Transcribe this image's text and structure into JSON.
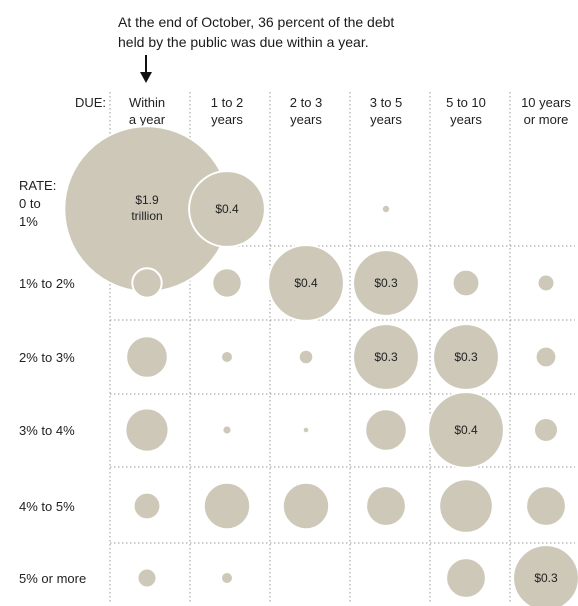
{
  "annotation": {
    "line1": "At the end of October, 36 percent of the debt",
    "line2": "held by the public was due within a year."
  },
  "chart_data": {
    "type": "bubble-matrix",
    "column_axis_label": "DUE:",
    "row_axis_label": "RATE:",
    "columns": [
      {
        "line1": "Within",
        "line2": "a year"
      },
      {
        "line1": "1 to 2",
        "line2": "years"
      },
      {
        "line1": "2 to 3",
        "line2": "years"
      },
      {
        "line1": "3 to 5",
        "line2": "years"
      },
      {
        "line1": "5 to 10",
        "line2": "years"
      },
      {
        "line1": "10 years",
        "line2": "or more"
      }
    ],
    "rows": [
      {
        "line1": "0 to",
        "line2": "1%"
      },
      {
        "line1": "1% to 2%",
        "line2": ""
      },
      {
        "line1": "2% to 3%",
        "line2": ""
      },
      {
        "line1": "3% to 4%",
        "line2": ""
      },
      {
        "line1": "4% to 5%",
        "line2": ""
      },
      {
        "line1": "5% or more",
        "line2": ""
      }
    ],
    "unit": "trillion dollars",
    "values": [
      [
        1.9,
        0.4,
        0,
        0.005,
        0,
        0
      ],
      [
        0.06,
        0.06,
        0.4,
        0.3,
        0.05,
        0.02
      ],
      [
        0.12,
        0.01,
        0.015,
        0.3,
        0.3,
        0.03
      ],
      [
        0.13,
        0.006,
        0.003,
        0.12,
        0.4,
        0.04
      ],
      [
        0.05,
        0.15,
        0.15,
        0.11,
        0.2,
        0.11
      ],
      [
        0.025,
        0.01,
        0,
        0,
        0.11,
        0.3
      ]
    ],
    "labels": [
      [
        "$1.9 trillion",
        "$0.4",
        "",
        "",
        "",
        ""
      ],
      [
        "",
        "",
        "$0.4",
        "$0.3",
        "",
        ""
      ],
      [
        "",
        "",
        "",
        "$0.3",
        "$0.3",
        ""
      ],
      [
        "",
        "",
        "",
        "",
        "$0.4",
        ""
      ],
      [
        "",
        "",
        "",
        "",
        "",
        ""
      ],
      [
        "",
        "",
        "",
        "",
        "",
        "$0.3"
      ]
    ],
    "colors": {
      "bubble": "#cdc8b8",
      "grid": "#9a9a9a"
    }
  }
}
